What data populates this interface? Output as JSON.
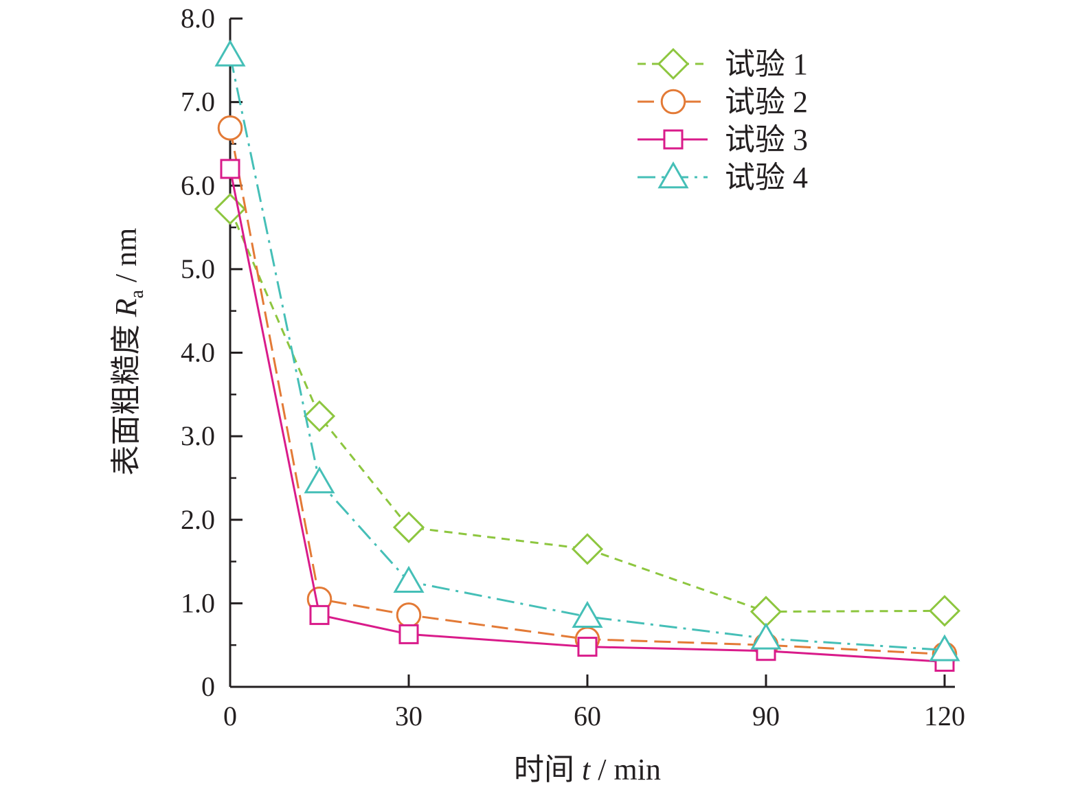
{
  "chart_data": {
    "type": "line",
    "xlabel": {
      "prefix": "时间 ",
      "var": "t",
      "suffix": " / min"
    },
    "ylabel": {
      "prefix": "表面粗糙度 ",
      "var": "R",
      "sub": "a",
      "suffix": " / nm"
    },
    "xlim": [
      0,
      120
    ],
    "ylim": [
      0,
      8
    ],
    "xticks": [
      0,
      30,
      60,
      90,
      120
    ],
    "xtick_labels": [
      "0",
      "30",
      "60",
      "90",
      "120"
    ],
    "yticks": [
      0,
      1,
      2,
      3,
      4,
      5,
      6,
      7,
      8
    ],
    "ytick_labels": [
      "0",
      "1.0",
      "2.0",
      "3.0",
      "4.0",
      "5.0",
      "6.0",
      "7.0",
      "8.0"
    ],
    "grid": false,
    "legend_position": "top-right",
    "x": [
      0,
      15,
      30,
      60,
      90,
      120
    ],
    "series": [
      {
        "name": "试验 1",
        "marker": "diamond",
        "dash": "dashed-short",
        "color": "#8dc63f",
        "values": [
          5.72,
          3.24,
          1.91,
          1.65,
          0.9,
          0.91
        ]
      },
      {
        "name": "试验 2",
        "marker": "circle",
        "dash": "dashed-long",
        "color": "#e37a36",
        "values": [
          6.69,
          1.05,
          0.86,
          0.57,
          0.5,
          0.39
        ]
      },
      {
        "name": "试验 3",
        "marker": "square",
        "dash": "solid",
        "color": "#d91b8a",
        "values": [
          6.2,
          0.86,
          0.63,
          0.48,
          0.43,
          0.3
        ]
      },
      {
        "name": "试验 4",
        "marker": "triangle",
        "dash": "dash-dot",
        "color": "#45bfb7",
        "values": [
          7.56,
          2.45,
          1.26,
          0.84,
          0.58,
          0.44
        ]
      }
    ]
  }
}
